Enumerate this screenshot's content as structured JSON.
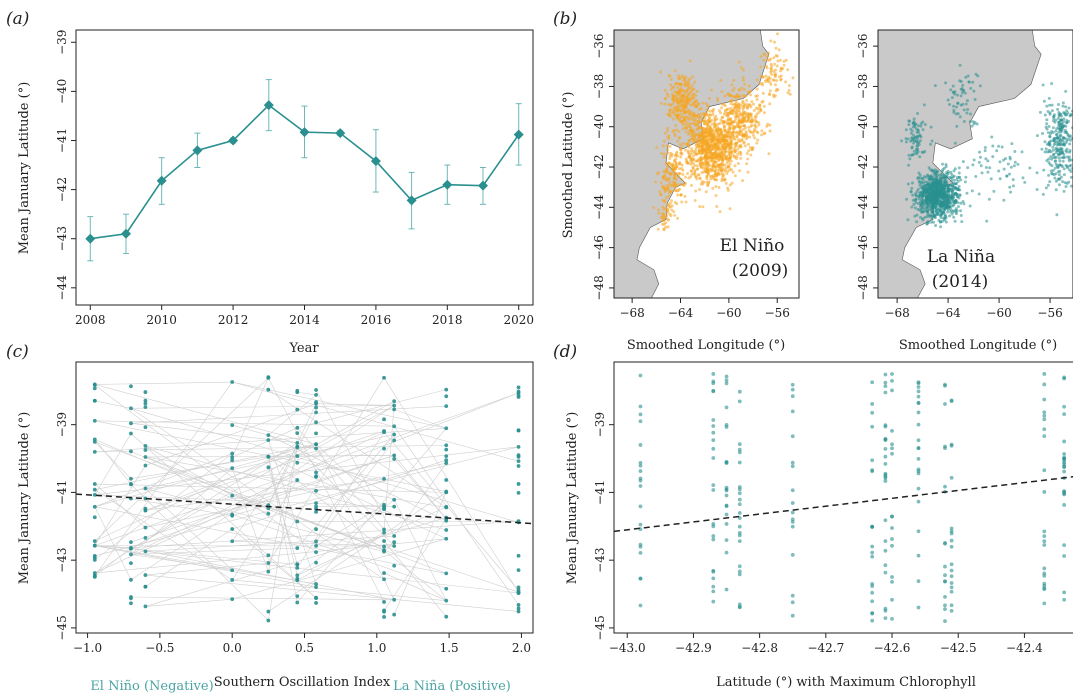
{
  "chart_data": [
    {
      "panel": "(a)",
      "type": "line",
      "xlabel": "Year",
      "ylabel": "Mean January Latitude (°)",
      "xticks": [
        2008,
        2010,
        2012,
        2014,
        2016,
        2018,
        2020
      ],
      "yticks": [
        -39,
        -40,
        -41,
        -42,
        -43,
        -44
      ],
      "xlim": [
        2007.6,
        2020.4
      ],
      "ylim": [
        -44.35,
        -38.75
      ],
      "color": "#2a8f8f",
      "points": [
        {
          "x": 2008,
          "y": -43.0,
          "lo": -43.45,
          "hi": -42.55
        },
        {
          "x": 2009,
          "y": -42.9,
          "lo": -43.3,
          "hi": -42.5
        },
        {
          "x": 2010,
          "y": -41.82,
          "lo": -42.3,
          "hi": -41.35
        },
        {
          "x": 2011,
          "y": -41.2,
          "lo": -41.55,
          "hi": -40.85
        },
        {
          "x": 2012,
          "y": -41.0,
          "lo": -41.05,
          "hi": -40.95
        },
        {
          "x": 2013,
          "y": -40.28,
          "lo": -40.8,
          "hi": -39.76
        },
        {
          "x": 2014,
          "y": -40.83,
          "lo": -41.35,
          "hi": -40.3
        },
        {
          "x": 2015,
          "y": -40.85,
          "lo": -40.9,
          "hi": -40.8
        },
        {
          "x": 2016,
          "y": -41.42,
          "lo": -42.05,
          "hi": -40.78
        },
        {
          "x": 2017,
          "y": -42.22,
          "lo": -42.8,
          "hi": -41.65
        },
        {
          "x": 2018,
          "y": -41.9,
          "lo": -42.3,
          "hi": -41.5
        },
        {
          "x": 2019,
          "y": -41.92,
          "lo": -42.3,
          "hi": -41.55
        },
        {
          "x": 2020,
          "y": -40.88,
          "lo": -41.5,
          "hi": -40.25
        }
      ]
    },
    {
      "panel": "(b)",
      "type": "scatter",
      "xlabel": "Smoothed Longitude (°)",
      "ylabel": "Smoothed Latitude (°)",
      "xticks": [
        -68,
        -64,
        -60,
        -56
      ],
      "yticks": [
        -36,
        -38,
        -40,
        -42,
        -44,
        -46,
        -48
      ],
      "xlim": [
        -69.5,
        -54.2
      ],
      "ylim": [
        -48.5,
        -35.2
      ],
      "land_color": "#c9c9c9",
      "maps": [
        {
          "annotation": "El Niño",
          "year_label": "(2009)",
          "color": "#f5a623",
          "clusters": [
            [
              -61.5,
              -41.0,
              1.8,
              1.6,
              900
            ],
            [
              -63.8,
              -38.8,
              1.1,
              1.1,
              250
            ],
            [
              -64.8,
              -42.2,
              0.9,
              1.5,
              160
            ],
            [
              -59.0,
              -39.6,
              1.5,
              1.4,
              320
            ],
            [
              -56.3,
              -37.5,
              1.0,
              1.2,
              90
            ],
            [
              -65.3,
              -44.3,
              0.5,
              0.7,
              40
            ]
          ]
        },
        {
          "annotation": "La Niña",
          "year_label": "(2014)",
          "color": "#2a8f8f",
          "clusters": [
            [
              -64.8,
              -43.4,
              1.4,
              0.9,
              900
            ],
            [
              -66.5,
              -40.5,
              0.8,
              1.0,
              80
            ],
            [
              -62.8,
              -38.8,
              1.2,
              1.2,
              60
            ],
            [
              -55.3,
              -40.8,
              1.0,
              1.8,
              280
            ],
            [
              -60.0,
              -42.0,
              2.2,
              1.2,
              60
            ]
          ]
        }
      ]
    },
    {
      "panel": "(c)",
      "type": "scatter",
      "xlabel": "Southern Oscillation Index",
      "xlabel_left": "El Niño (Negative)",
      "xlabel_right": "La Niña (Positive)",
      "ylabel": "Mean January Latitude (°)",
      "xticks": [
        -1.0,
        -0.5,
        0.0,
        0.5,
        1.0,
        1.5,
        2.0
      ],
      "yticks": [
        -39,
        -41,
        -43,
        -45
      ],
      "xlim": [
        -1.08,
        2.08
      ],
      "ylim": [
        -45.15,
        -37.15
      ],
      "x_groups": [
        -0.95,
        -0.7,
        -0.6,
        0.0,
        0.25,
        0.45,
        0.58,
        1.05,
        1.12,
        1.48,
        1.98
      ],
      "trend": {
        "x": [
          -1.08,
          2.08
        ],
        "y": [
          -41.05,
          -41.92
        ]
      }
    },
    {
      "panel": "(d)",
      "type": "scatter",
      "xlabel": "Latitude (°) with Maximum Chlorophyll",
      "ylabel": "Mean January Latitude (°)",
      "xticks": [
        -43.0,
        -42.9,
        -42.8,
        -42.7,
        -42.6,
        -42.5,
        -42.4
      ],
      "yticks": [
        -39,
        -41,
        -43,
        -45
      ],
      "xlim": [
        -43.02,
        -42.31
      ],
      "ylim": [
        -45.15,
        -37.15
      ],
      "x_groups": [
        -42.98,
        -42.87,
        -42.85,
        -42.83,
        -42.75,
        -42.63,
        -42.61,
        -42.6,
        -42.56,
        -42.52,
        -42.51,
        -42.37,
        -42.34
      ],
      "trend": {
        "x": [
          -43.02,
          -42.31
        ],
        "y": [
          -42.15,
          -40.5
        ]
      }
    }
  ]
}
